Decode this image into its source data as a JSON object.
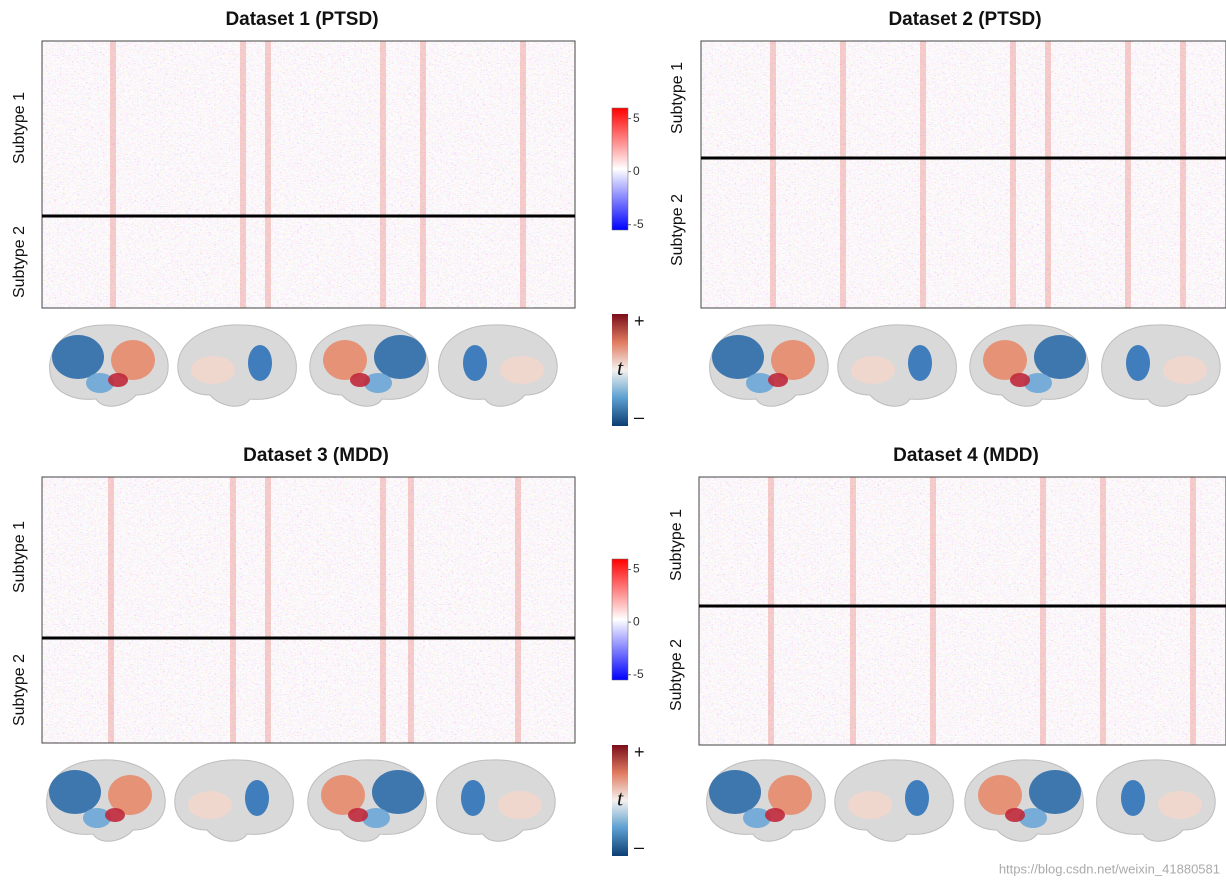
{
  "panels": [
    {
      "title": "Dataset 1 (PTSD)",
      "subtypes": [
        "Subtype 1",
        "Subtype 2"
      ]
    },
    {
      "title": "Dataset 2 (PTSD)",
      "subtypes": [
        "Subtype 1",
        "Subtype 2"
      ]
    },
    {
      "title": "Dataset 3 (MDD)",
      "subtypes": [
        "Subtype 1",
        "Subtype 2"
      ]
    },
    {
      "title": "Dataset 4 (MDD)",
      "subtypes": [
        "Subtype 1",
        "Subtype 2"
      ]
    }
  ],
  "colorbars": [
    {
      "lim": [
        -5.5,
        6
      ],
      "ticks": [
        5,
        0,
        -5
      ]
    },
    {
      "lim": [
        -5.5,
        6
      ],
      "ticks": [
        5,
        0,
        -5
      ]
    }
  ],
  "t_colorbars": [
    {
      "label": "t",
      "top": "+",
      "bottom": "–"
    },
    {
      "label": "t",
      "top": "+",
      "bottom": "–"
    }
  ],
  "watermark": "https://blog.csdn.net/weixin_41880581"
}
